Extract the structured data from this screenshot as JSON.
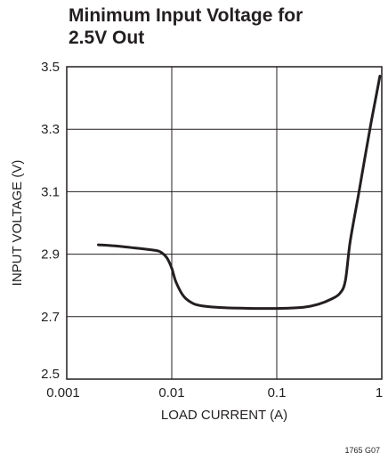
{
  "chart_data": {
    "type": "line",
    "title": "Minimum Input Voltage for\n2.5V Out",
    "xlabel": "LOAD CURRENT (A)",
    "ylabel": "INPUT VOLTAGE (V)",
    "x_scale": "log",
    "xlim": [
      0.001,
      1
    ],
    "ylim": [
      2.5,
      3.5
    ],
    "x_ticks": [
      "0.001",
      "0.01",
      "0.1",
      "1"
    ],
    "y_ticks": [
      "2.5",
      "2.7",
      "2.9",
      "3.1",
      "3.3",
      "3.5"
    ],
    "grid": true,
    "series": [
      {
        "color": "#231f20",
        "x": [
          0.002,
          0.003,
          0.005,
          0.007,
          0.008,
          0.009,
          0.01,
          0.011,
          0.013,
          0.016,
          0.02,
          0.03,
          0.05,
          0.08,
          0.12,
          0.18,
          0.25,
          0.33,
          0.4,
          0.45,
          0.5,
          0.6,
          0.7,
          0.8,
          0.9,
          0.96
        ],
        "y": [
          2.93,
          2.926,
          2.918,
          2.912,
          2.905,
          2.888,
          2.855,
          2.81,
          2.765,
          2.742,
          2.734,
          2.729,
          2.727,
          2.726,
          2.727,
          2.73,
          2.74,
          2.756,
          2.775,
          2.815,
          2.94,
          3.09,
          3.22,
          3.33,
          3.42,
          3.47
        ]
      }
    ]
  },
  "figure_id": "1765 G07"
}
